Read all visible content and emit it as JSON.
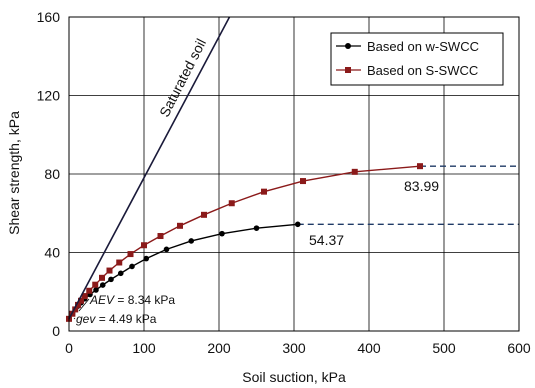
{
  "chart_data": {
    "type": "line",
    "xlabel": "Soil suction, kPa",
    "ylabel": "Shear strength, kPa",
    "xlim": [
      0,
      600
    ],
    "ylim": [
      0,
      160
    ],
    "xticks": [
      0,
      100,
      200,
      300,
      400,
      500,
      600
    ],
    "yticks": [
      0,
      40,
      80,
      120,
      160
    ],
    "grid": true,
    "legend_position": "top-right",
    "series": [
      {
        "name": "Based on w-SWCC",
        "marker": "circle",
        "color": "#000000",
        "x": [
          0,
          4.5,
          8.3,
          12,
          16,
          21,
          28,
          36,
          45,
          56,
          69,
          84,
          103,
          130,
          163,
          204,
          250,
          305
        ],
        "y": [
          6.2,
          8.8,
          11.0,
          12.7,
          14.4,
          16.4,
          18.6,
          20.9,
          23.4,
          26.3,
          29.4,
          32.9,
          36.9,
          41.6,
          45.9,
          49.6,
          52.4,
          54.37
        ],
        "extension": {
          "x": [
            305,
            600
          ],
          "y": [
            54.37,
            54.37
          ],
          "color": "#1f3a66",
          "dashed": true
        }
      },
      {
        "name": "Based on S-SWCC",
        "marker": "square",
        "color": "#8b1a1a",
        "x": [
          0,
          4.5,
          8.3,
          12,
          16,
          21,
          27,
          35,
          44,
          54,
          67,
          82,
          100,
          122,
          148,
          180,
          217,
          260,
          312,
          381,
          468
        ],
        "y": [
          6.2,
          8.8,
          11.0,
          13.3,
          15.4,
          17.8,
          20.5,
          23.6,
          27.1,
          30.8,
          34.9,
          39.2,
          43.7,
          48.4,
          53.6,
          59.2,
          65.1,
          71.0,
          76.4,
          81.1,
          83.99
        ],
        "extension": {
          "x": [
            468,
            600
          ],
          "y": [
            83.99,
            83.99
          ],
          "color": "#1f3a66",
          "dashed": true
        }
      },
      {
        "name": "Saturated soil",
        "marker": "none",
        "color": "#1a1a3a",
        "x": [
          0,
          214
        ],
        "y": [
          6.2,
          160
        ]
      }
    ],
    "annotations": {
      "saturated_soil": "Saturated soil",
      "w_end_value": "54.37",
      "s_end_value": "83.99",
      "aev_label": "AEV",
      "aev_value": " = 8.34 kPa",
      "gev_label": "gev",
      "gev_value": " = 4.49 kPa"
    }
  }
}
